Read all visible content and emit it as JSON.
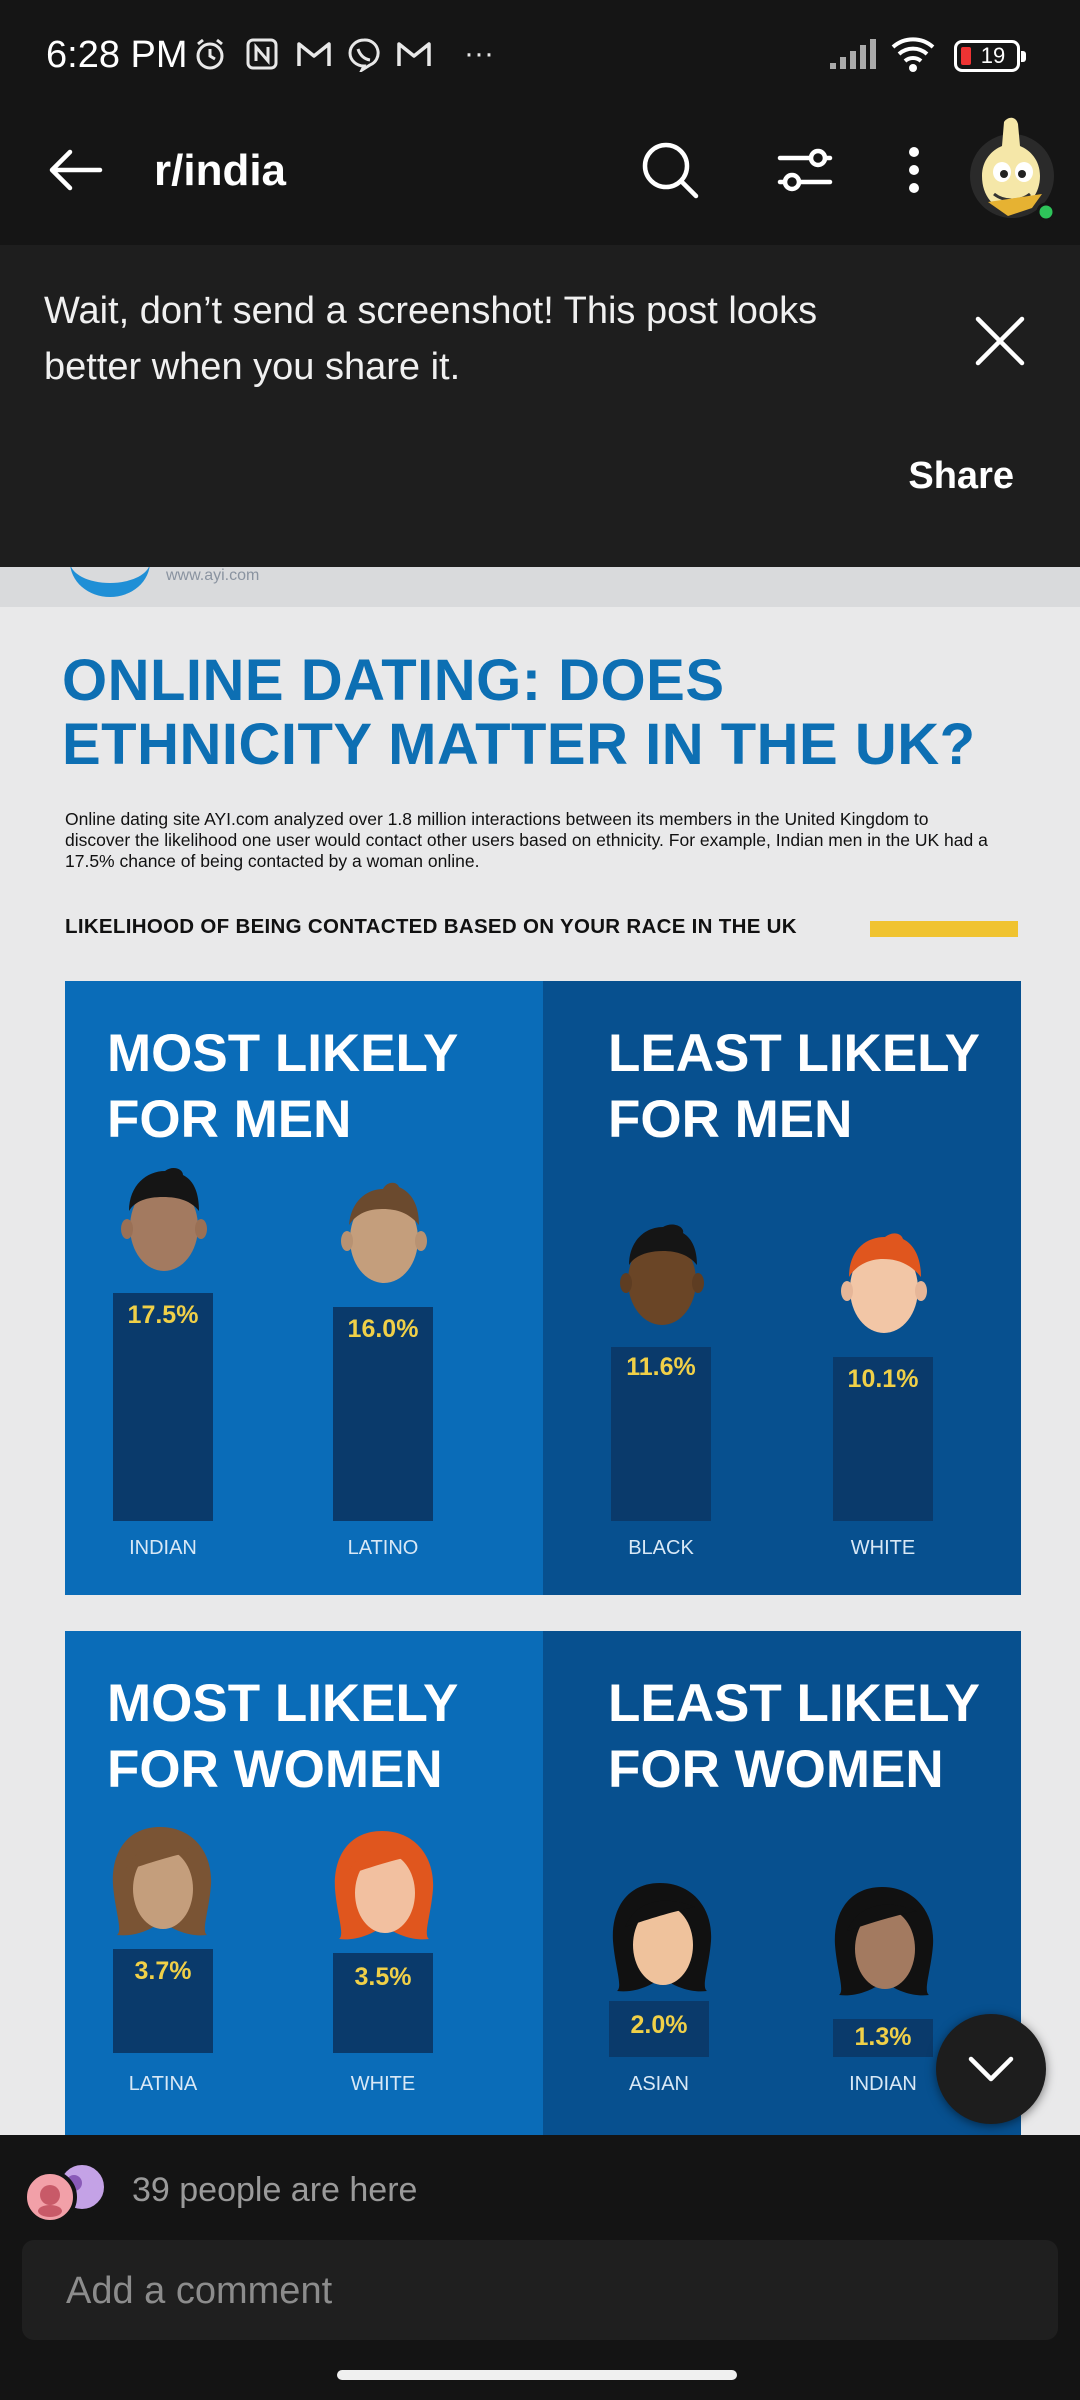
{
  "status_bar": {
    "time": "6:28 PM",
    "battery": "19",
    "overflow": "···"
  },
  "app_bar": {
    "subreddit": "r/india"
  },
  "share_banner": {
    "message": "Wait, don’t send a screenshot! This post looks better when you share it.",
    "share_label": "Share"
  },
  "post_image": {
    "logo_url": "www.ayi.com",
    "title": "ONLINE DATING: DOES ETHNICITY MATTER IN THE UK?",
    "description": "Online dating site AYI.com analyzed over 1.8 million interactions between its members in the United Kingdom to discover the likelihood one user would contact other users based on ethnicity. For example, Indian men in the UK had a 17.5% chance of being contacted by a woman online.",
    "subtitle": "LIKELIHOOD OF BEING CONTACTED BASED ON YOUR RACE IN THE UK",
    "panels": [
      {
        "title": "MOST LIKELY FOR MEN",
        "bars": [
          {
            "label": "INDIAN",
            "value": "17.5%"
          },
          {
            "label": "LATINO",
            "value": "16.0%"
          }
        ]
      },
      {
        "title": "LEAST LIKELY FOR MEN",
        "bars": [
          {
            "label": "BLACK",
            "value": "11.6%"
          },
          {
            "label": "WHITE",
            "value": "10.1%"
          }
        ]
      },
      {
        "title": "MOST LIKELY FOR WOMEN",
        "bars": [
          {
            "label": "LATINA",
            "value": "3.7%"
          },
          {
            "label": "WHITE",
            "value": "3.5%"
          }
        ]
      },
      {
        "title": "LEAST LIKELY FOR WOMEN",
        "bars": [
          {
            "label": "ASIAN",
            "value": "2.0%"
          },
          {
            "label": "INDIAN",
            "value": "1.3%"
          }
        ]
      }
    ]
  },
  "presence": {
    "text": "39 people are here"
  },
  "comment": {
    "placeholder": "Add a comment"
  },
  "colors": {
    "panel_light": "#0a6cb8",
    "panel_dark": "#07508f",
    "bar": "#0a3a6b",
    "value_text": "#f0d048",
    "title_blue": "#0d6fb3",
    "accent_yellow": "#f0c330"
  }
}
